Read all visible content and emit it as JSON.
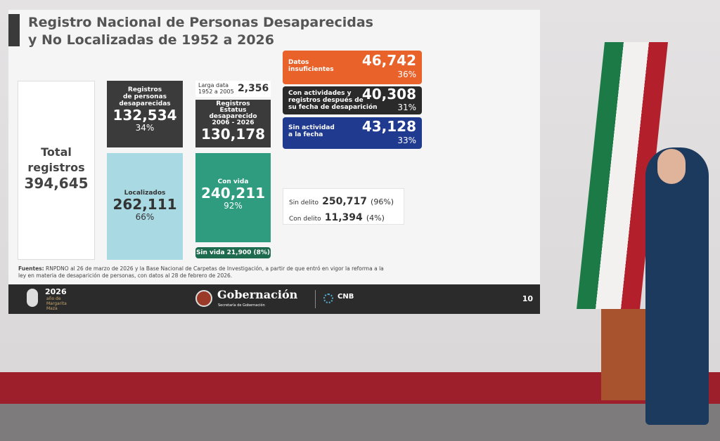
{
  "slide": {
    "title": [
      "Registro Nacional de Personas Desaparecidas",
      "y No Localizadas de 1952 a 2026"
    ],
    "total": {
      "label": [
        "Total",
        "registros"
      ],
      "value": "394,645"
    },
    "desaparecidas": {
      "label": [
        "Registros",
        "de personas",
        "desaparecidas"
      ],
      "value": "132,534",
      "percent": "34%"
    },
    "localizados": {
      "label": "Localizados",
      "value": "262,111",
      "percent": "66%"
    },
    "larga_data": {
      "label": [
        "Larga data",
        "1952 a 2005"
      ],
      "value": "2,356"
    },
    "estatus": {
      "label": [
        "Registros",
        "Estatus",
        "desaparecido",
        "2006 - 2026"
      ],
      "value": "130,178"
    },
    "con_vida": {
      "label": "Con vida",
      "value": "240,211",
      "percent": "92%"
    },
    "sin_vida": {
      "label": "Sin vida",
      "value": "21,900",
      "percent": "(8%)"
    },
    "datos_insuficientes": {
      "label": [
        "Datos",
        "insuficientes"
      ],
      "value": "46,742",
      "percent": "36%"
    },
    "con_actividades": {
      "label": [
        "Con actividades y",
        "registros después de",
        "su fecha de desaparición"
      ],
      "value": "40,308",
      "percent": "31%"
    },
    "sin_actividad": {
      "label": [
        "Sin actividad",
        "a la fecha"
      ],
      "value": "43,128",
      "percent": "33%"
    },
    "delito": [
      {
        "label": "Sin delito",
        "value": "250,717",
        "percent": "(96%)"
      },
      {
        "label": "Con delito",
        "value": "11,394",
        "percent": "(4%)"
      }
    ],
    "sources": {
      "label": "Fuentes:",
      "text": "RNPDNO al 26 de marzo de 2026 y la Base Nacional de Carpetas de Investigación, a partir de que entró en vigor la reforma a la ley en materia de desaparición de personas, con datos al 28 de febrero de 2026."
    },
    "footer": {
      "year": "2026",
      "year_caption": [
        "año de",
        "Margarita",
        "Maza"
      ],
      "brand": "Gobernación",
      "brand_caption": "Secretaría de Gobernación",
      "cnb": "CNB",
      "page": "10"
    }
  }
}
